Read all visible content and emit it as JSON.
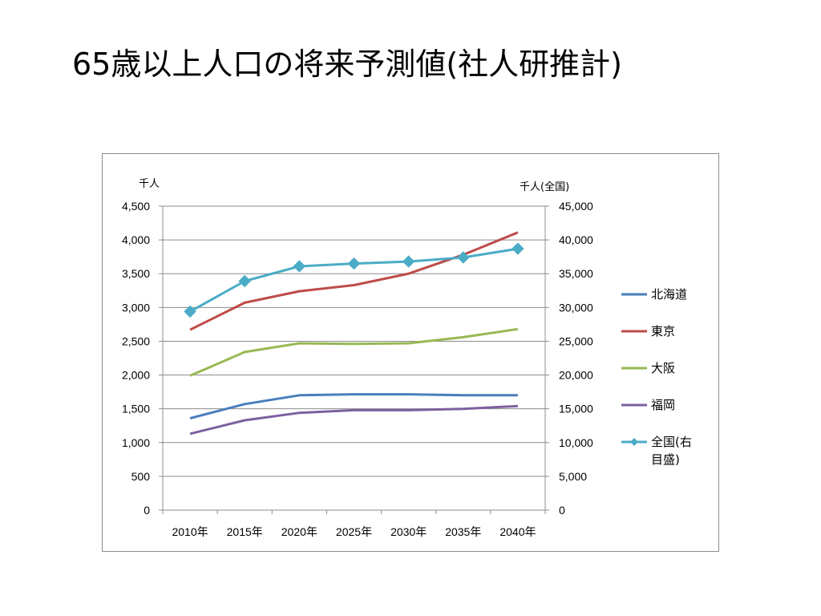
{
  "slide": {
    "title": "65歳以上人口の将来予測値(社人研推計)"
  },
  "chart_data": {
    "type": "line",
    "title": "",
    "categories": [
      "2010年",
      "2015年",
      "2020年",
      "2025年",
      "2030年",
      "2035年",
      "2040年"
    ],
    "y_left": {
      "unit_label": "千人",
      "range": [
        0,
        4500
      ],
      "ticks": [
        0,
        500,
        1000,
        1500,
        2000,
        2500,
        3000,
        3500,
        4000,
        4500
      ],
      "tick_labels": [
        "0",
        "500",
        "1,000",
        "1,500",
        "2,000",
        "2,500",
        "3,000",
        "3,500",
        "4,000",
        "4,500"
      ]
    },
    "y_right": {
      "unit_label": "千人(全国)",
      "range": [
        0,
        45000
      ],
      "ticks": [
        0,
        5000,
        10000,
        15000,
        20000,
        25000,
        30000,
        35000,
        40000,
        45000
      ],
      "tick_labels": [
        "0",
        "5,000",
        "10,000",
        "15,000",
        "20,000",
        "25,000",
        "30,000",
        "35,000",
        "40,000",
        "45,000"
      ]
    },
    "grid": true,
    "legend_position": "right",
    "series": [
      {
        "name": "北海道",
        "color": "#4a7ebb",
        "axis": "left",
        "marker": false,
        "values": [
          1360,
          1570,
          1700,
          1715,
          1715,
          1700,
          1700
        ]
      },
      {
        "name": "東京",
        "color": "#be4b48",
        "axis": "left",
        "marker": false,
        "values": [
          2670,
          3070,
          3240,
          3330,
          3500,
          3780,
          4110
        ]
      },
      {
        "name": "大阪",
        "color": "#98b954",
        "axis": "left",
        "marker": false,
        "values": [
          1990,
          2340,
          2470,
          2460,
          2470,
          2560,
          2680
        ]
      },
      {
        "name": "福岡",
        "color": "#7d60a0",
        "axis": "left",
        "marker": false,
        "values": [
          1130,
          1330,
          1440,
          1480,
          1480,
          1500,
          1540
        ]
      },
      {
        "name": "全国(右目盛)",
        "legend_lines": [
          "全国(右",
          "目盛)"
        ],
        "color": "#4bacc6",
        "axis": "right",
        "marker": true,
        "values": [
          29400,
          33900,
          36100,
          36500,
          36800,
          37400,
          38700
        ]
      }
    ]
  }
}
